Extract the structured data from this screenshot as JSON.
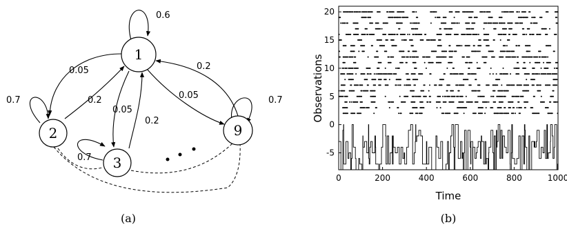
{
  "diagram": {
    "nodes": [
      {
        "id": "n1",
        "label": "1"
      },
      {
        "id": "n2",
        "label": "2"
      },
      {
        "id": "n3",
        "label": "3"
      },
      {
        "id": "n9",
        "label": "9"
      }
    ],
    "self_loops": {
      "n1": "0.6",
      "n2": "0.7",
      "n3": "0.7",
      "n9": "0.7"
    },
    "edges": {
      "n1_to_n2": "0.05",
      "n2_to_n1": "0.2",
      "n1_to_n3": "0.05",
      "n3_to_n1": "0.2",
      "n1_to_n9": "0.05",
      "n9_to_n1": "0.2"
    },
    "caption_a": "(a)"
  },
  "chart_data": {
    "type": "scatter",
    "xlabel": "Time",
    "ylabel": "Observations",
    "xlim": [
      0,
      1000
    ],
    "ylim": [
      -8,
      21
    ],
    "x_ticks": [
      0,
      200,
      400,
      600,
      800,
      1000
    ],
    "y_ticks": [
      -5,
      0,
      5,
      10,
      15,
      20
    ],
    "observation_rows": [
      2,
      3,
      4,
      5,
      6,
      7,
      8,
      9,
      10,
      11,
      12,
      13,
      14,
      15,
      16,
      17,
      18,
      19,
      20
    ],
    "state_trace_range": [
      -8,
      0
    ],
    "caption": "(b)"
  }
}
